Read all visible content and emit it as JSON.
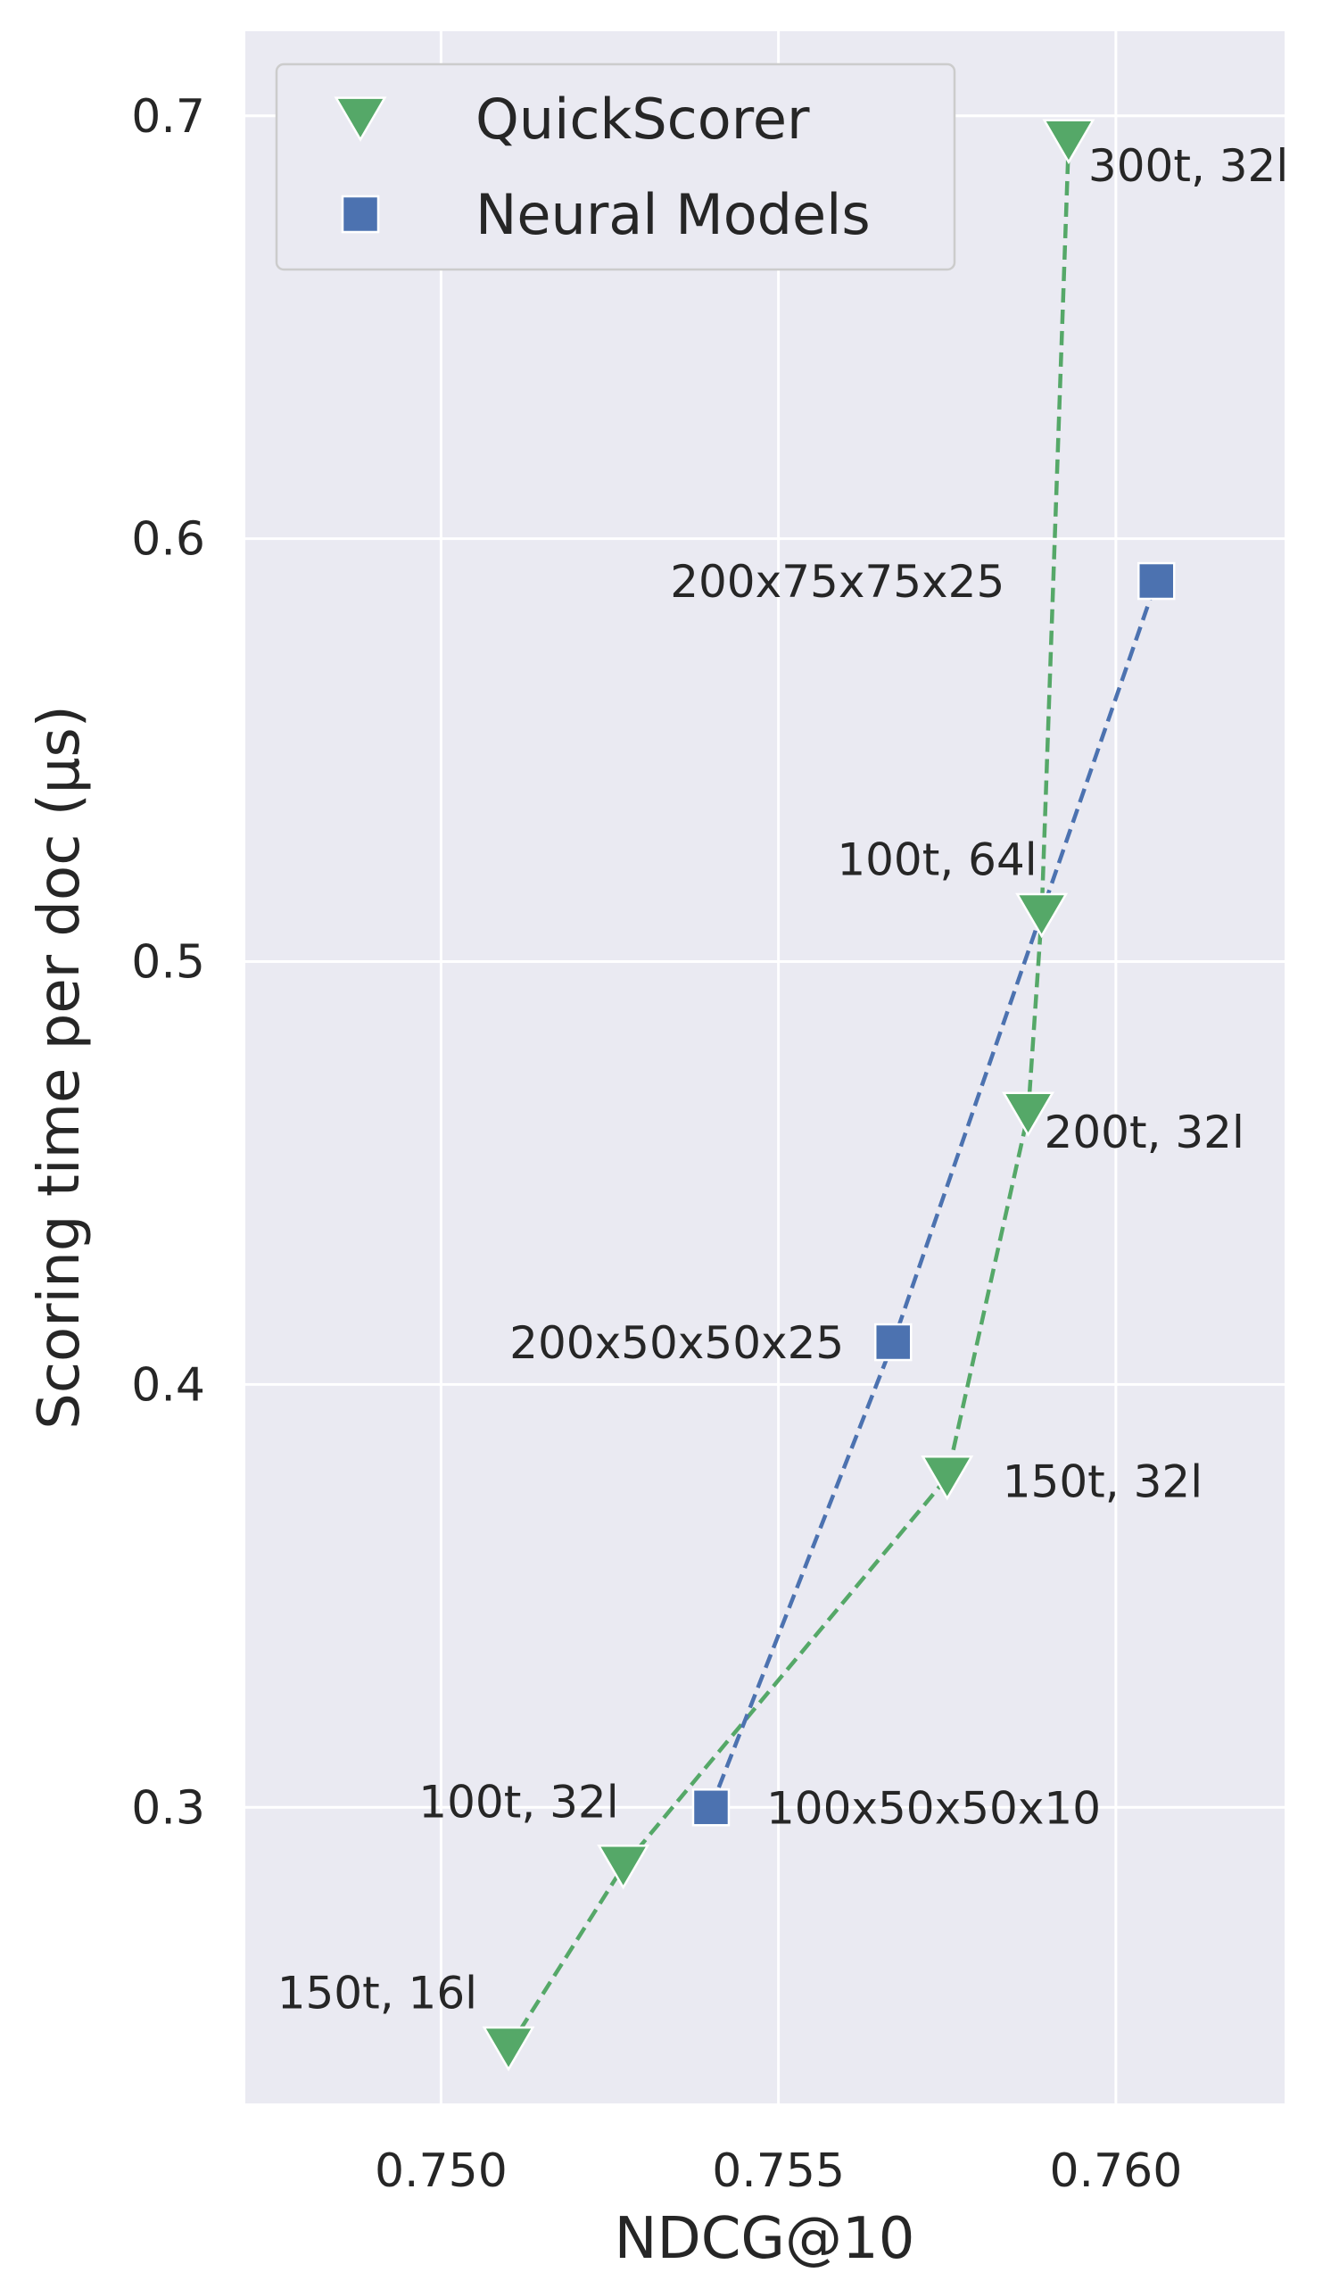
{
  "chart_data": {
    "type": "scatter",
    "xlabel": "NDCG@10",
    "ylabel": "Scoring time per doc (μs)",
    "xlim": [
      0.7471,
      0.7625
    ],
    "ylim": [
      0.23,
      0.72
    ],
    "xticks": [
      0.75,
      0.755,
      0.76
    ],
    "xtick_labels": [
      "0.750",
      "0.755",
      "0.760"
    ],
    "yticks": [
      0.3,
      0.4,
      0.5,
      0.6,
      0.7
    ],
    "ytick_labels": [
      "0.3",
      "0.4",
      "0.5",
      "0.6",
      "0.7"
    ],
    "grid": true,
    "legend_position": "top-left",
    "series": [
      {
        "name": "QuickScorer",
        "marker": "triangle-down",
        "color": "#55a868",
        "line_style": "dashed",
        "points": [
          {
            "x": 0.751,
            "y": 0.243,
            "label": "150t, 16l"
          },
          {
            "x": 0.7527,
            "y": 0.286,
            "label": "100t, 32l"
          },
          {
            "x": 0.7575,
            "y": 0.378,
            "label": "150t, 32l"
          },
          {
            "x": 0.7587,
            "y": 0.464,
            "label": "200t, 32l"
          },
          {
            "x": 0.7589,
            "y": 0.511,
            "label": "100t, 64l"
          },
          {
            "x": 0.7593,
            "y": 0.694,
            "label": "300t, 32l"
          }
        ]
      },
      {
        "name": "Neural Models",
        "marker": "square",
        "color": "#4c72b0",
        "line_style": "dashed",
        "points": [
          {
            "x": 0.754,
            "y": 0.3,
            "label": "100x50x50x10"
          },
          {
            "x": 0.7567,
            "y": 0.41,
            "label": "200x50x50x25"
          },
          {
            "x": 0.7606,
            "y": 0.59,
            "label": "200x75x75x25"
          }
        ]
      }
    ]
  }
}
